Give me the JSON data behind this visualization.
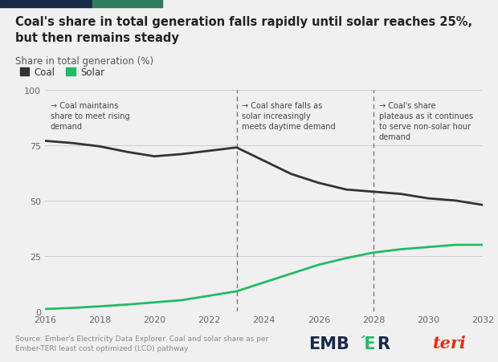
{
  "title": "Coal's share in total generation falls rapidly until solar reaches 25%,\nbut then remains steady",
  "subtitle": "Share in total generation (%)",
  "background_color": "#f0f0f0",
  "plot_bg_color": "#f0f0f0",
  "top_bar_color1": "#1a2a4a",
  "top_bar_color2": "#2e7d5e",
  "coal_color": "#333333",
  "solar_color": "#22bb66",
  "coal_years": [
    2016,
    2017,
    2018,
    2019,
    2020,
    2021,
    2022,
    2023,
    2024,
    2025,
    2026,
    2027,
    2028,
    2029,
    2030,
    2031,
    2032
  ],
  "coal_values": [
    77,
    76,
    74.5,
    72,
    70,
    71,
    72.5,
    74,
    68,
    62,
    58,
    55,
    54,
    53,
    51,
    50,
    48
  ],
  "solar_years": [
    2016,
    2017,
    2018,
    2019,
    2020,
    2021,
    2022,
    2023,
    2024,
    2025,
    2026,
    2027,
    2028,
    2029,
    2030,
    2031,
    2032
  ],
  "solar_values": [
    1,
    1.5,
    2.2,
    3,
    4,
    5,
    7,
    9,
    13,
    17,
    21,
    24,
    26.5,
    28,
    29,
    30,
    30
  ],
  "vline1_x": 2023,
  "vline2_x": 2028,
  "xlim": [
    2016,
    2032
  ],
  "ylim": [
    0,
    100
  ],
  "yticks": [
    0,
    25,
    50,
    75,
    100
  ],
  "xticks": [
    2016,
    2018,
    2020,
    2022,
    2024,
    2026,
    2028,
    2030,
    2032
  ],
  "annotation1_text": "→ Coal maintains\nshare to meet rising\ndemand",
  "annotation2_text": "→ Coal share falls as\nsolar increasingly\nmeets daytime demand",
  "annotation3_text": "→ Coal's share\nplateaus as it continues\nto serve non-solar hour\ndemand",
  "source_text": "Source: Ember's Electricity Data Explorer. Coal and solar share as per\nEmber-TERI least cost optimized (LCO) pathway"
}
